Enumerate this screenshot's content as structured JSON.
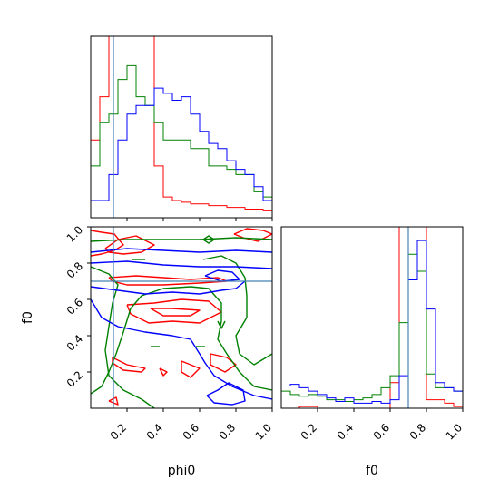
{
  "chart_data": {
    "type": "corner",
    "parameters": [
      "phi0",
      "f0"
    ],
    "xlabels": [
      "phi0",
      "f0"
    ],
    "ylabel": "f0",
    "range": [
      0,
      1
    ],
    "tick_labels": [
      "0.2",
      "0.4",
      "0.6",
      "0.8",
      "1.0"
    ],
    "truths": {
      "phi0": 0.125,
      "f0": 0.7
    },
    "colors": {
      "red": "#ff0000",
      "green": "#008000",
      "blue": "#0000ff",
      "truth": "#4682b4"
    },
    "histograms": {
      "phi0": {
        "bin_edges": [
          0,
          0.05,
          0.1,
          0.15,
          0.2,
          0.25,
          0.3,
          0.35,
          0.4,
          0.45,
          0.5,
          0.55,
          0.6,
          0.65,
          0.7,
          0.75,
          0.8,
          0.85,
          0.9,
          0.95,
          1.0
        ],
        "series": [
          {
            "color": "red",
            "values": [
              0.45,
              0.7,
              1.05,
              1.05,
              1.05,
              1.05,
              1.05,
              0.3,
              0.12,
              0.1,
              0.09,
              0.08,
              0.08,
              0.07,
              0.07,
              0.06,
              0.06,
              0.05,
              0.05,
              0.04
            ]
          },
          {
            "color": "green",
            "values": [
              0.3,
              0.55,
              0.6,
              0.8,
              0.88,
              0.7,
              0.65,
              0.55,
              0.45,
              0.45,
              0.45,
              0.4,
              0.4,
              0.3,
              0.3,
              0.28,
              0.25,
              0.25,
              0.15,
              0.12
            ]
          },
          {
            "color": "blue",
            "values": [
              0.1,
              0.1,
              0.25,
              0.45,
              0.6,
              0.65,
              0.65,
              0.75,
              0.72,
              0.68,
              0.7,
              0.6,
              0.5,
              0.43,
              0.4,
              0.33,
              0.28,
              0.25,
              0.18,
              0.1
            ]
          }
        ]
      },
      "f0": {
        "bin_edges": [
          0,
          0.05,
          0.1,
          0.15,
          0.2,
          0.25,
          0.3,
          0.35,
          0.4,
          0.45,
          0.5,
          0.55,
          0.6,
          0.65,
          0.7,
          0.75,
          0.8,
          0.85,
          0.9,
          0.95,
          1.0
        ],
        "series": [
          {
            "color": "red",
            "values": [
              0,
              0,
              0.01,
              0.01,
              0,
              0,
              0,
              0,
              0,
              0,
              0,
              0,
              0.15,
              1.06,
              1.06,
              1.06,
              0.05,
              0.05,
              0.03,
              0.01
            ]
          },
          {
            "color": "green",
            "values": [
              0.1,
              0.08,
              0.07,
              0.08,
              0.07,
              0.05,
              0.05,
              0.04,
              0.05,
              0.06,
              0.08,
              0.12,
              0.19,
              0.5,
              0.9,
              0.8,
              0.2,
              0.12,
              0.12,
              0.1
            ]
          },
          {
            "color": "blue",
            "values": [
              0.13,
              0.14,
              0.12,
              0.1,
              0.08,
              0.06,
              0.04,
              0.06,
              0.03,
              0.03,
              0.04,
              0.03,
              0.05,
              0.19,
              0.75,
              0.98,
              0.58,
              0.15,
              0.12,
              0.1
            ]
          }
        ]
      }
    },
    "contours": [
      {
        "color": "red",
        "paths": [
          [
            [
              0.0,
              0.98
            ],
            [
              0.06,
              0.97
            ],
            [
              0.13,
              0.96
            ],
            [
              0.18,
              0.9
            ],
            [
              0.13,
              0.87
            ],
            [
              0.06,
              0.85
            ],
            [
              0.0,
              0.84
            ]
          ],
          [
            [
              0.08,
              0.88
            ],
            [
              0.15,
              0.93
            ],
            [
              0.25,
              0.95
            ],
            [
              0.35,
              0.9
            ],
            [
              0.28,
              0.86
            ],
            [
              0.18,
              0.85
            ],
            [
              0.1,
              0.86
            ],
            [
              0.08,
              0.88
            ]
          ],
          [
            [
              0.1,
              0.72
            ],
            [
              0.25,
              0.73
            ],
            [
              0.4,
              0.72
            ],
            [
              0.55,
              0.71
            ],
            [
              0.7,
              0.72
            ],
            [
              0.75,
              0.7
            ],
            [
              0.6,
              0.69
            ],
            [
              0.4,
              0.68
            ],
            [
              0.2,
              0.68
            ],
            [
              0.12,
              0.7
            ],
            [
              0.1,
              0.72
            ]
          ],
          [
            [
              0.2,
              0.57
            ],
            [
              0.35,
              0.58
            ],
            [
              0.5,
              0.6
            ],
            [
              0.65,
              0.59
            ],
            [
              0.72,
              0.53
            ],
            [
              0.6,
              0.47
            ],
            [
              0.45,
              0.48
            ],
            [
              0.32,
              0.47
            ],
            [
              0.22,
              0.52
            ],
            [
              0.2,
              0.57
            ]
          ],
          [
            [
              0.33,
              0.55
            ],
            [
              0.45,
              0.55
            ],
            [
              0.6,
              0.54
            ],
            [
              0.55,
              0.51
            ],
            [
              0.4,
              0.51
            ],
            [
              0.33,
              0.55
            ]
          ],
          [
            [
              0.12,
              0.28
            ],
            [
              0.2,
              0.24
            ],
            [
              0.3,
              0.22
            ],
            [
              0.28,
              0.2
            ],
            [
              0.18,
              0.21
            ],
            [
              0.12,
              0.25
            ],
            [
              0.12,
              0.28
            ]
          ],
          [
            [
              0.5,
              0.26
            ],
            [
              0.6,
              0.22
            ],
            [
              0.55,
              0.17
            ],
            [
              0.5,
              0.2
            ],
            [
              0.5,
              0.26
            ]
          ],
          [
            [
              0.66,
              0.3
            ],
            [
              0.75,
              0.28
            ],
            [
              0.8,
              0.24
            ],
            [
              0.74,
              0.2
            ],
            [
              0.66,
              0.24
            ],
            [
              0.66,
              0.3
            ]
          ],
          [
            [
              0.79,
              0.96
            ],
            [
              0.86,
              0.99
            ],
            [
              0.95,
              0.98
            ],
            [
              1.0,
              0.96
            ],
            [
              0.92,
              0.92
            ],
            [
              0.84,
              0.94
            ],
            [
              0.79,
              0.96
            ]
          ],
          [
            [
              0.38,
              0.22
            ],
            [
              0.42,
              0.2
            ],
            [
              0.4,
              0.18
            ],
            [
              0.38,
              0.22
            ]
          ],
          [
            [
              0.1,
              0.04
            ],
            [
              0.14,
              0.06
            ],
            [
              0.15,
              0.02
            ],
            [
              0.1,
              0.04
            ]
          ]
        ]
      },
      {
        "color": "green",
        "paths": [
          [
            [
              0.0,
              0.92
            ],
            [
              0.2,
              0.93
            ],
            [
              0.4,
              0.93
            ],
            [
              0.6,
              0.93
            ],
            [
              0.8,
              0.94
            ],
            [
              1.0,
              0.93
            ]
          ],
          [
            [
              0.0,
              0.78
            ],
            [
              0.1,
              0.74
            ],
            [
              0.15,
              0.68
            ],
            [
              0.12,
              0.58
            ],
            [
              0.1,
              0.45
            ],
            [
              0.08,
              0.32
            ],
            [
              0.1,
              0.18
            ],
            [
              0.18,
              0.1
            ],
            [
              0.28,
              0.05
            ],
            [
              0.35,
              0.0
            ]
          ],
          [
            [
              0.0,
              0.08
            ],
            [
              0.06,
              0.12
            ],
            [
              0.1,
              0.2
            ],
            [
              0.14,
              0.3
            ],
            [
              0.18,
              0.42
            ],
            [
              0.22,
              0.55
            ],
            [
              0.28,
              0.62
            ],
            [
              0.4,
              0.66
            ],
            [
              0.55,
              0.67
            ],
            [
              0.65,
              0.66
            ],
            [
              0.72,
              0.58
            ],
            [
              0.72,
              0.48
            ],
            [
              0.7,
              0.38
            ],
            [
              0.75,
              0.3
            ],
            [
              0.82,
              0.2
            ],
            [
              0.9,
              0.12
            ],
            [
              1.0,
              0.1
            ]
          ],
          [
            [
              0.62,
              0.82
            ],
            [
              0.72,
              0.84
            ],
            [
              0.8,
              0.8
            ],
            [
              0.85,
              0.72
            ],
            [
              0.86,
              0.62
            ],
            [
              0.86,
              0.5
            ],
            [
              0.8,
              0.4
            ],
            [
              0.82,
              0.3
            ],
            [
              0.9,
              0.24
            ],
            [
              1.0,
              0.3
            ]
          ],
          [
            [
              0.62,
              0.93
            ],
            [
              0.65,
              0.95
            ],
            [
              0.68,
              0.93
            ],
            [
              0.65,
              0.91
            ],
            [
              0.62,
              0.93
            ]
          ],
          [
            [
              0.23,
              0.82
            ],
            [
              0.3,
              0.82
            ]
          ],
          [
            [
              0.33,
              0.34
            ],
            [
              0.38,
              0.34
            ]
          ],
          [
            [
              0.58,
              0.34
            ],
            [
              0.63,
              0.34
            ]
          ],
          [
            [
              0.7,
              0.48
            ],
            [
              0.72,
              0.44
            ],
            [
              0.74,
              0.48
            ]
          ]
        ]
      },
      {
        "color": "blue",
        "paths": [
          [
            [
              0.0,
              0.86
            ],
            [
              0.2,
              0.88
            ],
            [
              0.4,
              0.87
            ],
            [
              0.6,
              0.86
            ],
            [
              0.8,
              0.87
            ],
            [
              1.0,
              0.86
            ]
          ],
          [
            [
              0.0,
              0.8
            ],
            [
              0.2,
              0.81
            ],
            [
              0.4,
              0.79
            ],
            [
              0.6,
              0.78
            ],
            [
              0.8,
              0.78
            ],
            [
              1.0,
              0.77
            ]
          ],
          [
            [
              0.0,
              0.67
            ],
            [
              0.15,
              0.65
            ],
            [
              0.3,
              0.63
            ],
            [
              0.45,
              0.64
            ],
            [
              0.6,
              0.63
            ],
            [
              0.72,
              0.65
            ],
            [
              0.8,
              0.66
            ],
            [
              0.85,
              0.7
            ]
          ],
          [
            [
              0.0,
              0.6
            ],
            [
              0.06,
              0.5
            ],
            [
              0.15,
              0.45
            ],
            [
              0.3,
              0.42
            ],
            [
              0.45,
              0.4
            ],
            [
              0.55,
              0.38
            ],
            [
              0.6,
              0.3
            ],
            [
              0.63,
              0.25
            ],
            [
              0.68,
              0.18
            ],
            [
              0.78,
              0.12
            ],
            [
              0.9,
              0.07
            ],
            [
              1.0,
              0.05
            ]
          ],
          [
            [
              0.63,
              0.73
            ],
            [
              0.7,
              0.76
            ],
            [
              0.78,
              0.75
            ],
            [
              0.82,
              0.71
            ],
            [
              0.72,
              0.7
            ],
            [
              0.63,
              0.73
            ]
          ],
          [
            [
              0.64,
              0.07
            ],
            [
              0.7,
              0.1
            ],
            [
              0.76,
              0.14
            ],
            [
              0.84,
              0.1
            ],
            [
              0.85,
              0.04
            ],
            [
              0.78,
              0.02
            ],
            [
              0.68,
              0.03
            ],
            [
              0.64,
              0.07
            ]
          ]
        ]
      }
    ]
  }
}
